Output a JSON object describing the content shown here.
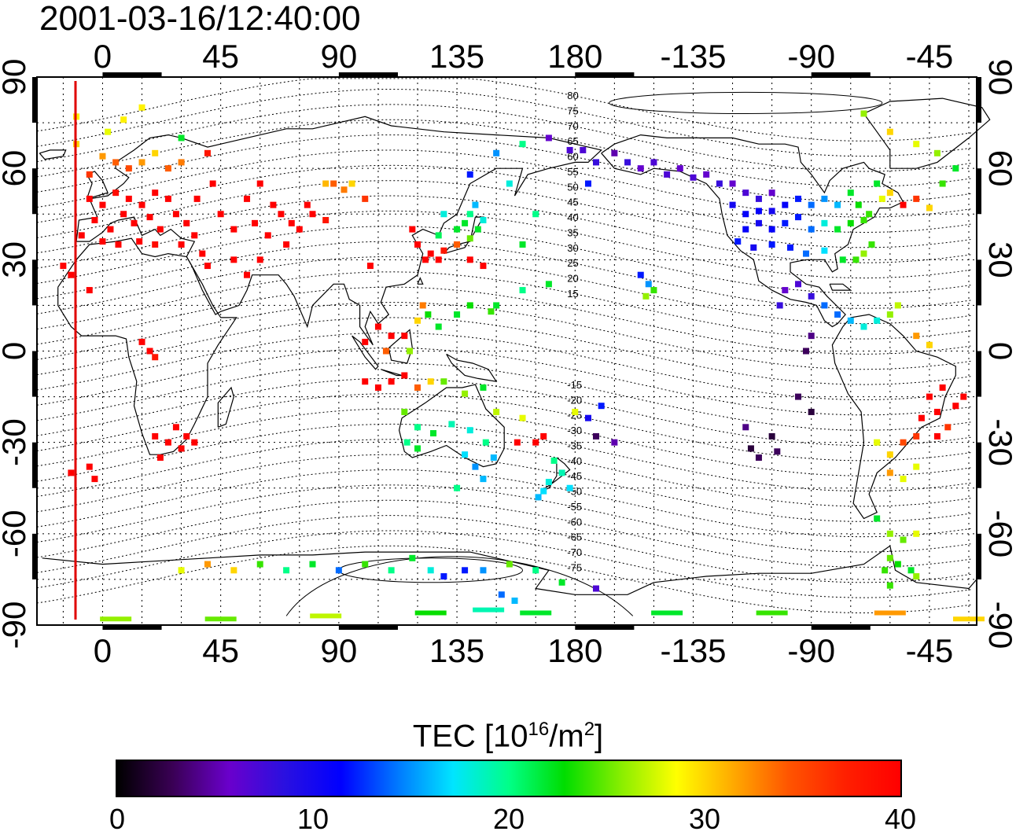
{
  "title": "2001-03-16/12:40:00",
  "map": {
    "lon_labels": [
      "0",
      "45",
      "90",
      "135",
      "180",
      "-135",
      "-90",
      "-45"
    ],
    "lat_labels": [
      "90",
      "60",
      "30",
      "0",
      "-30",
      "-60",
      "-90"
    ],
    "lon_values": [
      0,
      45,
      90,
      135,
      180,
      225,
      270,
      315
    ],
    "lat_values": [
      90,
      60,
      30,
      0,
      -30,
      -60,
      -90
    ],
    "lon_range": [
      -25,
      333
    ],
    "lat_range": [
      -90,
      90
    ],
    "magnetic_latitude_labels": [
      "80",
      "75",
      "70",
      "65",
      "60",
      "55",
      "50",
      "45",
      "40",
      "35",
      "30",
      "25",
      "20",
      "15",
      "-15",
      "-20",
      "-25",
      "-30",
      "-35",
      "-40",
      "-45",
      "-50",
      "-55",
      "-60",
      "-65",
      "-70",
      "-75"
    ],
    "marker_line_color": "#e00000",
    "tec_points": [
      [
        -5,
        50,
        40
      ],
      [
        0,
        48,
        40
      ],
      [
        5,
        52,
        39
      ],
      [
        10,
        50,
        40
      ],
      [
        15,
        48,
        40
      ],
      [
        20,
        52,
        40
      ],
      [
        25,
        50,
        40
      ],
      [
        -3,
        43,
        40
      ],
      [
        3,
        40,
        40
      ],
      [
        8,
        45,
        40
      ],
      [
        12,
        42,
        40
      ],
      [
        18,
        44,
        40
      ],
      [
        22,
        40,
        40
      ],
      [
        28,
        45,
        40
      ],
      [
        32,
        42,
        40
      ],
      [
        35,
        38,
        40
      ],
      [
        -8,
        38,
        40
      ],
      [
        0,
        36,
        40
      ],
      [
        6,
        35,
        40
      ],
      [
        14,
        36,
        40
      ],
      [
        20,
        35,
        39
      ],
      [
        30,
        35,
        40
      ],
      [
        38,
        32,
        40
      ],
      [
        10,
        60,
        35
      ],
      [
        5,
        62,
        34
      ],
      [
        0,
        64,
        32
      ],
      [
        -5,
        58,
        36
      ],
      [
        15,
        62,
        32
      ],
      [
        20,
        65,
        30
      ],
      [
        25,
        60,
        34
      ],
      [
        30,
        62,
        33
      ],
      [
        -10,
        68,
        30
      ],
      [
        2,
        72,
        28
      ],
      [
        8,
        76,
        29
      ],
      [
        15,
        80,
        29
      ],
      [
        -10,
        77,
        29
      ],
      [
        30,
        70,
        22
      ],
      [
        40,
        65,
        38
      ],
      [
        42,
        55,
        40
      ],
      [
        36,
        50,
        40
      ],
      [
        45,
        45,
        40
      ],
      [
        50,
        40,
        40
      ],
      [
        58,
        42,
        40
      ],
      [
        63,
        38,
        40
      ],
      [
        68,
        45,
        40
      ],
      [
        72,
        42,
        40
      ],
      [
        75,
        40,
        40
      ],
      [
        80,
        45,
        40
      ],
      [
        85,
        43,
        38
      ],
      [
        78,
        48,
        40
      ],
      [
        65,
        48,
        40
      ],
      [
        55,
        50,
        40
      ],
      [
        60,
        55,
        40
      ],
      [
        55,
        25,
        40
      ],
      [
        50,
        30,
        40
      ],
      [
        60,
        30,
        40
      ],
      [
        70,
        35,
        40
      ],
      [
        40,
        28,
        40
      ],
      [
        85,
        55,
        31
      ],
      [
        88,
        55,
        34
      ],
      [
        92,
        53,
        33
      ],
      [
        95,
        55,
        30
      ],
      [
        100,
        50,
        36
      ],
      [
        102,
        28,
        40
      ],
      [
        118,
        40,
        40
      ],
      [
        120,
        35,
        40
      ],
      [
        125,
        32,
        40
      ],
      [
        130,
        33,
        38
      ],
      [
        135,
        35,
        34
      ],
      [
        140,
        37,
        25
      ],
      [
        143,
        40,
        22
      ],
      [
        140,
        45,
        20
      ],
      [
        138,
        42,
        22
      ],
      [
        135,
        40,
        22
      ],
      [
        130,
        45,
        18
      ],
      [
        128,
        38,
        21
      ],
      [
        145,
        43,
        18
      ],
      [
        142,
        48,
        16
      ],
      [
        123,
        30,
        40
      ],
      [
        128,
        30,
        40
      ],
      [
        140,
        30,
        40
      ],
      [
        145,
        28,
        40
      ],
      [
        105,
        8,
        40
      ],
      [
        110,
        5,
        40
      ],
      [
        115,
        5,
        40
      ],
      [
        100,
        3,
        40
      ],
      [
        108,
        0,
        34
      ],
      [
        117,
        0,
        26
      ],
      [
        120,
        10,
        30
      ],
      [
        122,
        15,
        33
      ],
      [
        124,
        12,
        23
      ],
      [
        128,
        8,
        22
      ],
      [
        135,
        12,
        22
      ],
      [
        140,
        15,
        23
      ],
      [
        148,
        13,
        24
      ],
      [
        100,
        -10,
        40
      ],
      [
        105,
        -12,
        40
      ],
      [
        110,
        -10,
        40
      ],
      [
        115,
        -8,
        40
      ],
      [
        120,
        -12,
        34
      ],
      [
        125,
        -10,
        30
      ],
      [
        130,
        -10,
        25
      ],
      [
        138,
        -14,
        26
      ],
      [
        145,
        -12,
        22
      ],
      [
        150,
        -20,
        27
      ],
      [
        115,
        -20,
        25
      ],
      [
        120,
        -25,
        20
      ],
      [
        126,
        -27,
        22
      ],
      [
        133,
        -24,
        19
      ],
      [
        140,
        -26,
        18
      ],
      [
        146,
        -30,
        20
      ],
      [
        149,
        -35,
        16
      ],
      [
        142,
        -38,
        15
      ],
      [
        138,
        -34,
        17
      ],
      [
        145,
        -42,
        16
      ],
      [
        135,
        -45,
        20
      ],
      [
        120,
        -32,
        22
      ],
      [
        116,
        -30,
        20
      ],
      [
        172,
        -36,
        20
      ],
      [
        175,
        -40,
        19
      ],
      [
        170,
        -43,
        18
      ],
      [
        168,
        -46,
        17
      ],
      [
        166,
        -48,
        16
      ],
      [
        178,
        -45,
        17
      ],
      [
        158,
        -30,
        40
      ],
      [
        165,
        -30,
        40
      ],
      [
        168,
        -28,
        40
      ],
      [
        160,
        -22,
        28
      ],
      [
        180,
        -20,
        28
      ],
      [
        185,
        -22,
        10
      ],
      [
        188,
        -28,
        3
      ],
      [
        195,
        -30,
        5
      ],
      [
        190,
        -18,
        12
      ],
      [
        150,
        15,
        22
      ],
      [
        160,
        20,
        20
      ],
      [
        170,
        22,
        22
      ],
      [
        160,
        35,
        22
      ],
      [
        165,
        45,
        20
      ],
      [
        155,
        55,
        18
      ],
      [
        140,
        58,
        12
      ],
      [
        150,
        65,
        15
      ],
      [
        160,
        68,
        20
      ],
      [
        170,
        70,
        6
      ],
      [
        178,
        66,
        7
      ],
      [
        183,
        66,
        7
      ],
      [
        188,
        62,
        8
      ],
      [
        185,
        55,
        12
      ],
      [
        195,
        65,
        5
      ],
      [
        200,
        62,
        8
      ],
      [
        205,
        60,
        6
      ],
      [
        210,
        62,
        7
      ],
      [
        215,
        58,
        7
      ],
      [
        220,
        60,
        6
      ],
      [
        225,
        57,
        7
      ],
      [
        230,
        58,
        6
      ],
      [
        235,
        55,
        8
      ],
      [
        240,
        55,
        6
      ],
      [
        245,
        52,
        7
      ],
      [
        250,
        50,
        8
      ],
      [
        255,
        52,
        6
      ],
      [
        205,
        25,
        12
      ],
      [
        208,
        22,
        15
      ],
      [
        210,
        20,
        24
      ],
      [
        207,
        18,
        26
      ],
      [
        240,
        48,
        10
      ],
      [
        245,
        45,
        11
      ],
      [
        250,
        42,
        10
      ],
      [
        255,
        40,
        11
      ],
      [
        260,
        42,
        12
      ],
      [
        265,
        44,
        12
      ],
      [
        270,
        40,
        14
      ],
      [
        275,
        42,
        18
      ],
      [
        280,
        40,
        22
      ],
      [
        285,
        42,
        23
      ],
      [
        290,
        43,
        24
      ],
      [
        292,
        45,
        24
      ],
      [
        288,
        48,
        23
      ],
      [
        285,
        52,
        22
      ],
      [
        280,
        48,
        16
      ],
      [
        275,
        50,
        15
      ],
      [
        270,
        48,
        14
      ],
      [
        265,
        50,
        12
      ],
      [
        260,
        48,
        11
      ],
      [
        255,
        46,
        10
      ],
      [
        250,
        46,
        11
      ],
      [
        245,
        40,
        11
      ],
      [
        242,
        36,
        12
      ],
      [
        248,
        34,
        10
      ],
      [
        255,
        35,
        12
      ],
      [
        262,
        34,
        12
      ],
      [
        268,
        32,
        14
      ],
      [
        275,
        33,
        17
      ],
      [
        282,
        30,
        22
      ],
      [
        287,
        30,
        24
      ],
      [
        290,
        32,
        26
      ],
      [
        293,
        35,
        24
      ],
      [
        297,
        50,
        28
      ],
      [
        300,
        52,
        30
      ],
      [
        295,
        55,
        22
      ],
      [
        305,
        48,
        40
      ],
      [
        310,
        50,
        36
      ],
      [
        315,
        47,
        30
      ],
      [
        320,
        55,
        24
      ],
      [
        325,
        60,
        22
      ],
      [
        318,
        65,
        26
      ],
      [
        310,
        68,
        28
      ],
      [
        300,
        72,
        30
      ],
      [
        290,
        78,
        26
      ],
      [
        265,
        22,
        7
      ],
      [
        260,
        20,
        6
      ],
      [
        270,
        18,
        8
      ],
      [
        258,
        15,
        8
      ],
      [
        275,
        15,
        14
      ],
      [
        280,
        12,
        14
      ],
      [
        285,
        10,
        16
      ],
      [
        290,
        8,
        18
      ],
      [
        295,
        10,
        18
      ],
      [
        300,
        12,
        26
      ],
      [
        303,
        15,
        27
      ],
      [
        310,
        5,
        32
      ],
      [
        315,
        2,
        30
      ],
      [
        315,
        -15,
        40
      ],
      [
        320,
        -12,
        40
      ],
      [
        318,
        -20,
        40
      ],
      [
        325,
        -18,
        40
      ],
      [
        328,
        -15,
        40
      ],
      [
        312,
        -22,
        40
      ],
      [
        318,
        -28,
        40
      ],
      [
        322,
        -25,
        36
      ],
      [
        305,
        -30,
        35
      ],
      [
        310,
        -28,
        36
      ],
      [
        300,
        -34,
        30
      ],
      [
        295,
        -30,
        28
      ],
      [
        300,
        -40,
        32
      ],
      [
        305,
        -42,
        28
      ],
      [
        310,
        -38,
        28
      ],
      [
        295,
        -55,
        22
      ],
      [
        300,
        -60,
        26
      ],
      [
        305,
        -62,
        25
      ],
      [
        310,
        -60,
        28
      ],
      [
        300,
        -68,
        25
      ],
      [
        303,
        -70,
        23
      ],
      [
        308,
        -72,
        22
      ],
      [
        298,
        -72,
        24
      ],
      [
        265,
        -15,
        3
      ],
      [
        270,
        -20,
        2
      ],
      [
        245,
        -25,
        4
      ],
      [
        247,
        -32,
        2
      ],
      [
        250,
        -35,
        3
      ],
      [
        255,
        -28,
        2
      ],
      [
        257,
        -33,
        3
      ],
      [
        268,
        0,
        3
      ],
      [
        270,
        5,
        4
      ],
      [
        -15,
        28,
        40
      ],
      [
        -12,
        25,
        40
      ],
      [
        -5,
        20,
        40
      ],
      [
        15,
        3,
        40
      ],
      [
        18,
        0,
        40
      ],
      [
        20,
        -2,
        38
      ],
      [
        20,
        -28,
        40
      ],
      [
        25,
        -30,
        40
      ],
      [
        30,
        -32,
        40
      ],
      [
        28,
        -25,
        40
      ],
      [
        32,
        -28,
        40
      ],
      [
        35,
        -30,
        40
      ],
      [
        22,
        -35,
        40
      ],
      [
        -12,
        -40,
        40
      ],
      [
        -5,
        -38,
        40
      ],
      [
        -3,
        -42,
        40
      ],
      [
        30,
        -72,
        28
      ],
      [
        40,
        -70,
        32
      ],
      [
        50,
        -72,
        30
      ],
      [
        60,
        -70,
        24
      ],
      [
        70,
        -72,
        20
      ],
      [
        80,
        -70,
        22
      ],
      [
        90,
        -72,
        14
      ],
      [
        100,
        -70,
        24
      ],
      [
        110,
        -72,
        20
      ],
      [
        118,
        -68,
        22
      ],
      [
        125,
        -72,
        18
      ],
      [
        130,
        -74,
        12
      ],
      [
        138,
        -72,
        12
      ],
      [
        145,
        -72,
        15
      ],
      [
        155,
        -70,
        25
      ],
      [
        165,
        -72,
        20
      ],
      [
        175,
        -76,
        22
      ],
      [
        188,
        -78,
        7
      ],
      [
        152,
        -80,
        14
      ],
      [
        157,
        -82,
        16
      ],
      [
        147,
        -85,
        19
      ],
      [
        300,
        -77,
        24
      ],
      [
        310,
        -74,
        26
      ],
      [
        5,
        -88,
        26
      ],
      [
        45,
        -88,
        25
      ],
      [
        85,
        -87,
        27
      ],
      [
        125,
        -86,
        23
      ],
      [
        165,
        -86,
        22
      ],
      [
        215,
        -86,
        22
      ],
      [
        255,
        -86,
        24
      ],
      [
        300,
        -86,
        32
      ],
      [
        330,
        -88,
        30
      ]
    ]
  },
  "colorbar": {
    "title_main": "TEC  [10",
    "title_exp1": "16",
    "title_mid": "/m",
    "title_exp2": "2",
    "title_end": "]",
    "tick_labels": [
      "0",
      "10",
      "20",
      "30",
      "40"
    ],
    "tick_values": [
      0,
      10,
      20,
      30,
      40
    ],
    "range": [
      0,
      40
    ],
    "colors": [
      "#000000",
      "#3a0055",
      "#6a00cc",
      "#2a10e0",
      "#0000ff",
      "#0077ff",
      "#00e5ff",
      "#00ff88",
      "#00dd00",
      "#88ee00",
      "#ffff00",
      "#ffaa00",
      "#ff5500",
      "#ff2000",
      "#ff0000"
    ]
  },
  "chart_data": {
    "type": "heatmap",
    "title": "2001-03-16/12:40:00",
    "xlabel": "",
    "ylabel": "",
    "colorbar_label": "TEC  [10^16/m^2]",
    "xlim": [
      -25,
      333
    ],
    "ylim": [
      -90,
      90
    ],
    "clim": [
      0,
      40
    ],
    "x_tick_labels": [
      "0",
      "45",
      "90",
      "135",
      "180",
      "-135",
      "-90",
      "-45"
    ],
    "y_tick_labels": [
      "90",
      "60",
      "30",
      "0",
      "-30",
      "-60",
      "-90"
    ],
    "grid": true
  }
}
